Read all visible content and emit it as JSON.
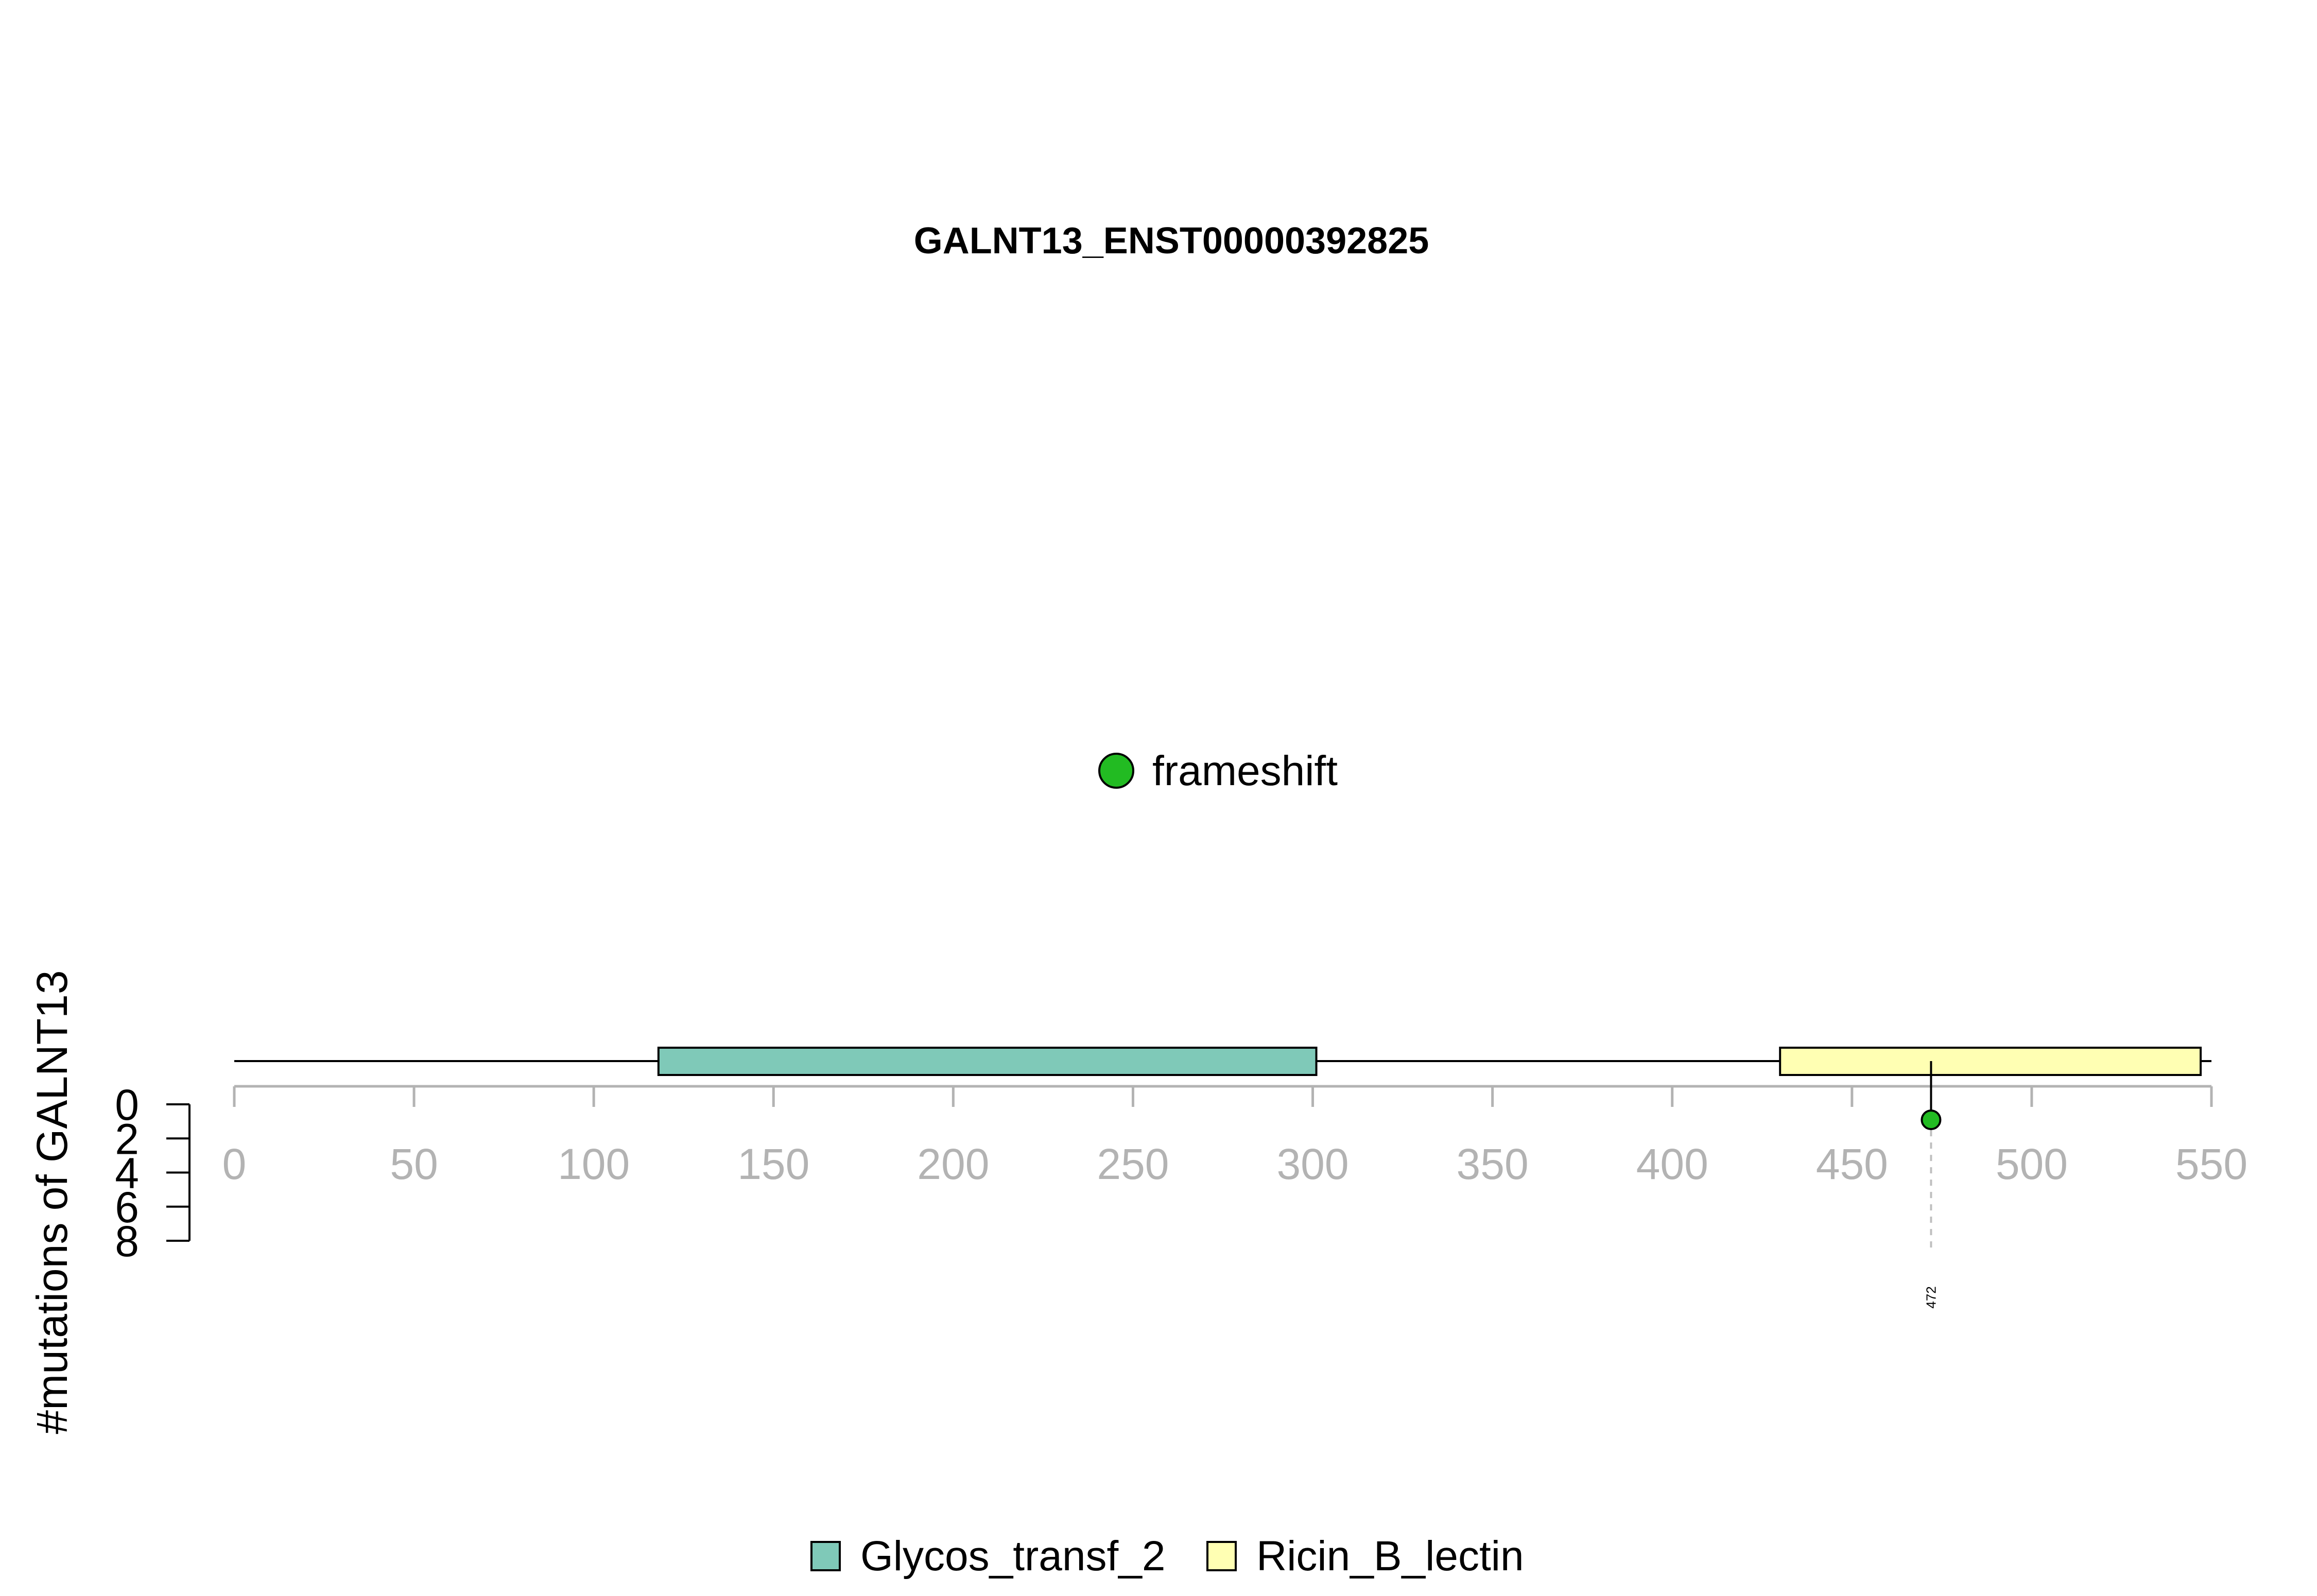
{
  "chart_data": {
    "type": "lollipop",
    "title": "GALNT13_ENST00000392825",
    "ylabel": "#mutations of GALNT13",
    "protein_length": 550,
    "x_ticks": [
      0,
      50,
      100,
      150,
      200,
      250,
      300,
      350,
      400,
      450,
      500,
      550
    ],
    "y_ticks": [
      0,
      2,
      4,
      6,
      8
    ],
    "xlim": [
      0,
      550
    ],
    "ylim": [
      0,
      8
    ],
    "domains": [
      {
        "name": "Glycos_transf_2",
        "start": 118,
        "end": 301,
        "color": "#7fc9b8"
      },
      {
        "name": "Ricin_B_lectin",
        "start": 430,
        "end": 547,
        "color": "#ffffb3"
      }
    ],
    "mutations": [
      {
        "position": 472,
        "count": 1,
        "type": "frameshift",
        "label": "472"
      }
    ],
    "mutation_types": [
      {
        "name": "frameshift",
        "color": "#22bb22"
      }
    ],
    "domain_legend_placement": "bottom-center",
    "type_legend_placement": "top-center"
  }
}
